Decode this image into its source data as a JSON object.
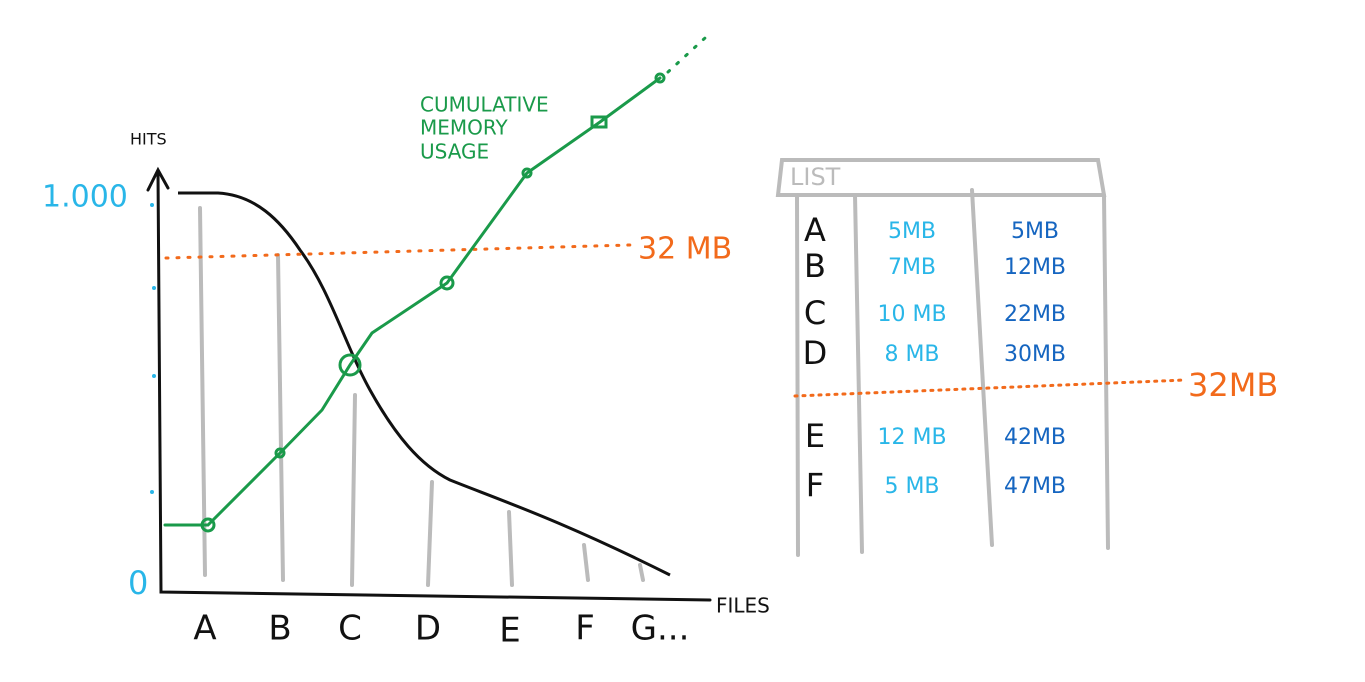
{
  "axes": {
    "y_label": "HITS",
    "y_top": "1.000",
    "y_bottom": "0",
    "x_label": "FILES",
    "x_categories": [
      "A",
      "B",
      "C",
      "D",
      "E",
      "F",
      "G..."
    ]
  },
  "threshold_label": "32 MB",
  "curve_label": [
    "CUMULATIVE",
    "MEMORY",
    "USAGE"
  ],
  "list": {
    "title": "LIST",
    "rows": [
      [
        "A",
        "5MB",
        "5MB"
      ],
      [
        "B",
        "7MB",
        "12MB"
      ],
      [
        "C",
        "10 MB",
        "22MB"
      ],
      [
        "D",
        "8 MB",
        "30MB"
      ],
      [
        "E",
        "12 MB",
        "42MB"
      ],
      [
        "F",
        "5 MB",
        "47MB"
      ]
    ],
    "threshold_label": "32MB"
  }
}
